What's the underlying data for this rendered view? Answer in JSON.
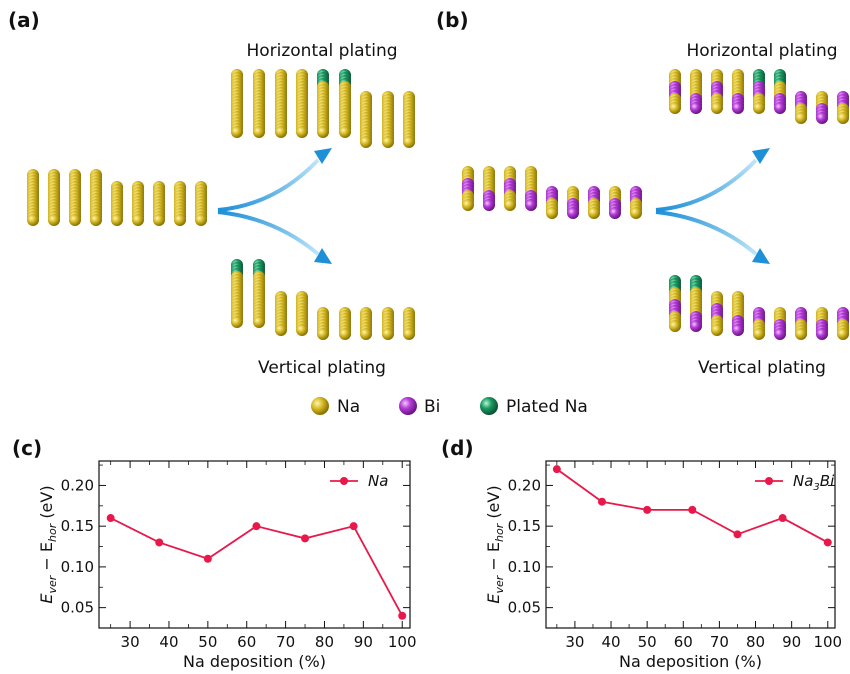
{
  "panels": {
    "a": "(a)",
    "b": "(b)",
    "c": "(c)",
    "d": "(d)"
  },
  "structures": {
    "horizontal_label": "Horizontal plating",
    "vertical_label": "Vertical plating"
  },
  "atom_legend": [
    {
      "label": "Na",
      "color": "#d4b726"
    },
    {
      "label": "Bi",
      "color": "#b43ad6"
    },
    {
      "label": "Plated Na",
      "color": "#1a9a62"
    }
  ],
  "colors": {
    "na": "#d4b726",
    "bi": "#b43ad6",
    "plated": "#1a9a62",
    "arrow": "#2aa0e0",
    "series": "#e8194a"
  },
  "chart_data": [
    {
      "type": "line",
      "x": [
        25,
        37.5,
        50,
        62.5,
        75,
        87.5,
        100
      ],
      "series": [
        {
          "name": "Na",
          "values": [
            0.16,
            0.13,
            0.11,
            0.15,
            0.135,
            0.15,
            0.04
          ]
        }
      ],
      "xlabel": "Na deposition (%)",
      "ylabel_main": "E",
      "ylabel_sub1": "ver",
      "ylabel_mid": " − E",
      "ylabel_sub2": "hor",
      "ylabel_unit": " (eV)",
      "xlim": [
        22,
        102
      ],
      "ylim": [
        0.025,
        0.23
      ],
      "xticks": [
        30,
        40,
        50,
        60,
        70,
        80,
        90,
        100
      ],
      "yticks": [
        0.05,
        0.1,
        0.15,
        0.2
      ],
      "ytick_labels": [
        "0.05",
        "0.10",
        "0.15",
        "0.20"
      ],
      "legend_position": "top-right"
    },
    {
      "type": "line",
      "x": [
        25,
        37.5,
        50,
        62.5,
        75,
        87.5,
        100
      ],
      "series": [
        {
          "name": "Na3Bi",
          "name_base": "Na",
          "name_sub": "3",
          "name_tail": "Bi",
          "values": [
            0.22,
            0.18,
            0.17,
            0.17,
            0.14,
            0.16,
            0.13
          ]
        }
      ],
      "xlabel": "Na deposition (%)",
      "ylabel_main": "E",
      "ylabel_sub1": "ver",
      "ylabel_mid": " − E",
      "ylabel_sub2": "hor",
      "ylabel_unit": " (eV)",
      "xlim": [
        22,
        102
      ],
      "ylim": [
        0.025,
        0.23
      ],
      "xticks": [
        30,
        40,
        50,
        60,
        70,
        80,
        90,
        100
      ],
      "yticks": [
        0.05,
        0.1,
        0.15,
        0.2
      ],
      "ytick_labels": [
        "0.05",
        "0.10",
        "0.15",
        "0.20"
      ],
      "legend_position": "top-right"
    }
  ]
}
